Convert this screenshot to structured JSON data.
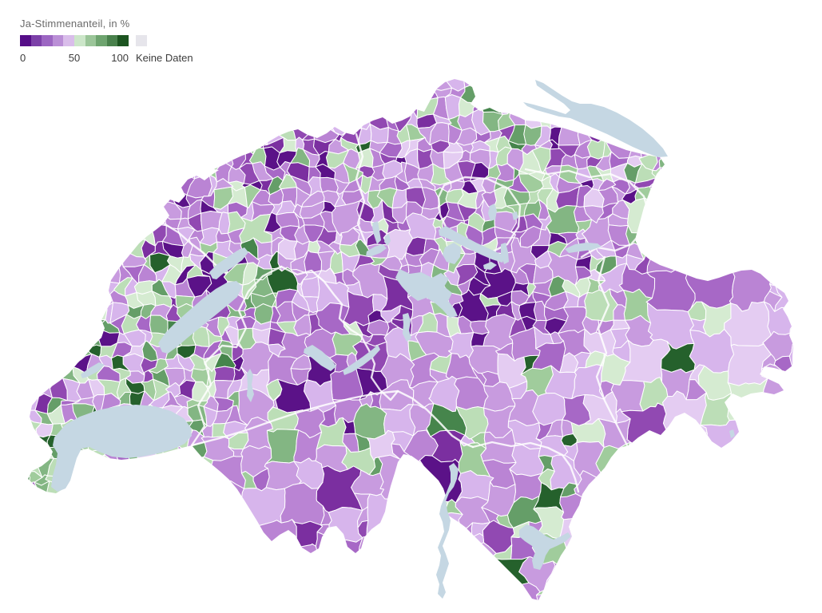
{
  "legend": {
    "title": "Ja-Stimmenanteil, in %",
    "tick_labels": [
      "0",
      "50",
      "100"
    ],
    "no_data_label": "Keine Daten",
    "scale_colors": [
      "#560e88",
      "#7c40a8",
      "#9c66c2",
      "#ba8fd6",
      "#d9bdea",
      "#cce6c9",
      "#9bc599",
      "#6ea46f",
      "#49814c",
      "#1c5420"
    ],
    "no_data_color": "#e6e5eb"
  },
  "map": {
    "type": "choropleth",
    "lake_color": "#c5d7e3",
    "boundary_color": "#ffffff",
    "background_color": "#ffffff",
    "purple_shades": [
      "#e4ccf2",
      "#d7b5ec",
      "#c89bdf",
      "#ba84d4",
      "#a768c6",
      "#9149b2",
      "#7b2fa0",
      "#5b1288"
    ],
    "green_shades": [
      "#d5ebd1",
      "#bcdeb7",
      "#a0cc9c",
      "#83b683",
      "#659e68",
      "#46854c",
      "#25612c"
    ]
  }
}
